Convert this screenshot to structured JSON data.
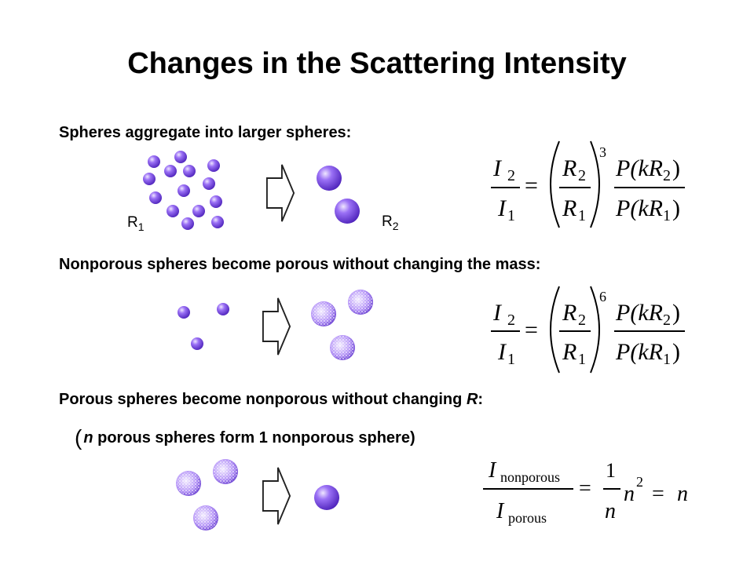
{
  "title": "Changes in the Scattering Intensity",
  "sections": [
    {
      "heading": "Spheres aggregate into larger spheres:",
      "left_label": {
        "base": "R",
        "sub": "1"
      },
      "right_label": {
        "base": "R",
        "sub": "2"
      },
      "exponent": "3"
    },
    {
      "heading": "Nonporous spheres become porous without changing the mass:",
      "exponent": "6"
    },
    {
      "heading_parts": [
        "Porous spheres become nonporous without changing ",
        "R",
        ":"
      ],
      "note_parts": [
        "(",
        "n",
        " porous spheres form 1 nonporous sphere)"
      ]
    }
  ],
  "formula": {
    "I": "I",
    "R": "R",
    "sub1": "1",
    "sub2": "2",
    "eq": "=",
    "P_num": "P(kR",
    "P_num_close": ")",
    "P_den": "P(kR",
    "P_den_close": ")"
  },
  "formula3": {
    "I_num": "I",
    "sub_num": "nonporous",
    "I_den": "I",
    "sub_den": "porous",
    "eq": "=",
    "one": "1",
    "n": "n",
    "sq": "2"
  },
  "colors": {
    "sphere_dark": "#5b2fc9",
    "sphere_mid": "#8a5cf0",
    "sphere_light": "#e8dcff",
    "porous_dot": "#ffffff"
  }
}
